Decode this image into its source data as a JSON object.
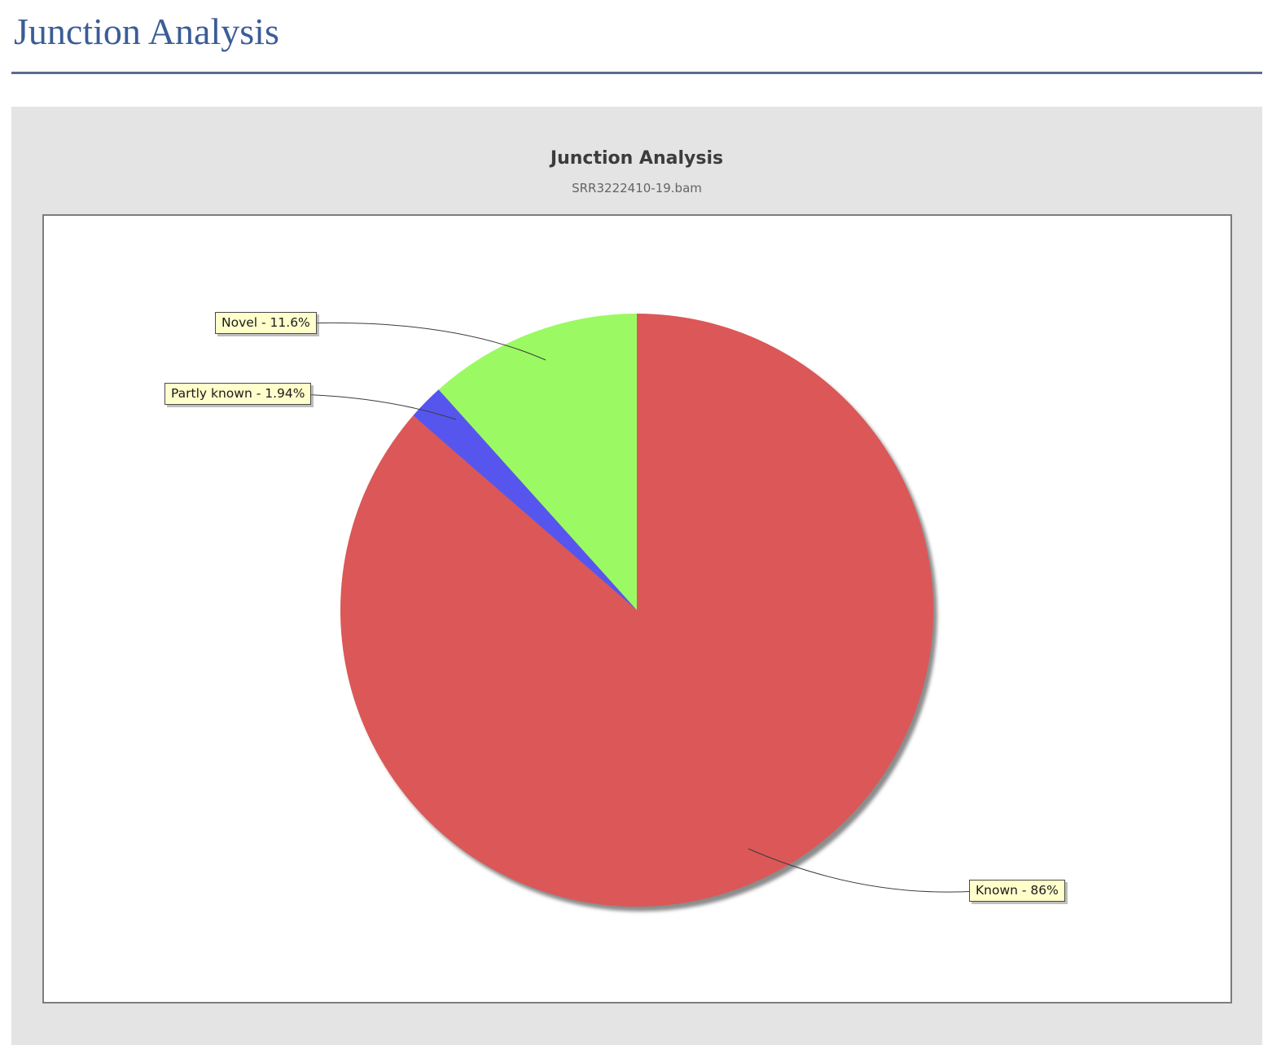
{
  "page": {
    "title": "Junction Analysis"
  },
  "chart": {
    "title": "Junction Analysis",
    "subtitle": "SRR3222410-19.bam"
  },
  "chart_data": {
    "type": "pie",
    "title": "Junction Analysis",
    "subtitle": "SRR3222410-19.bam",
    "start_angle": "12 o'clock",
    "direction": "clockwise",
    "slices": [
      {
        "label": "Known",
        "value": 86,
        "display": "Known - 86%",
        "color": "#dc5757"
      },
      {
        "label": "Partly known",
        "value": 1.94,
        "display": "Partly known - 1.94%",
        "color": "#5656ee"
      },
      {
        "label": "Novel",
        "value": 11.6,
        "display": "Novel - 11.6%",
        "color": "#9bfa63"
      }
    ],
    "shadow_color": "#8c8c8c",
    "callout_background": "#ffffcc"
  }
}
